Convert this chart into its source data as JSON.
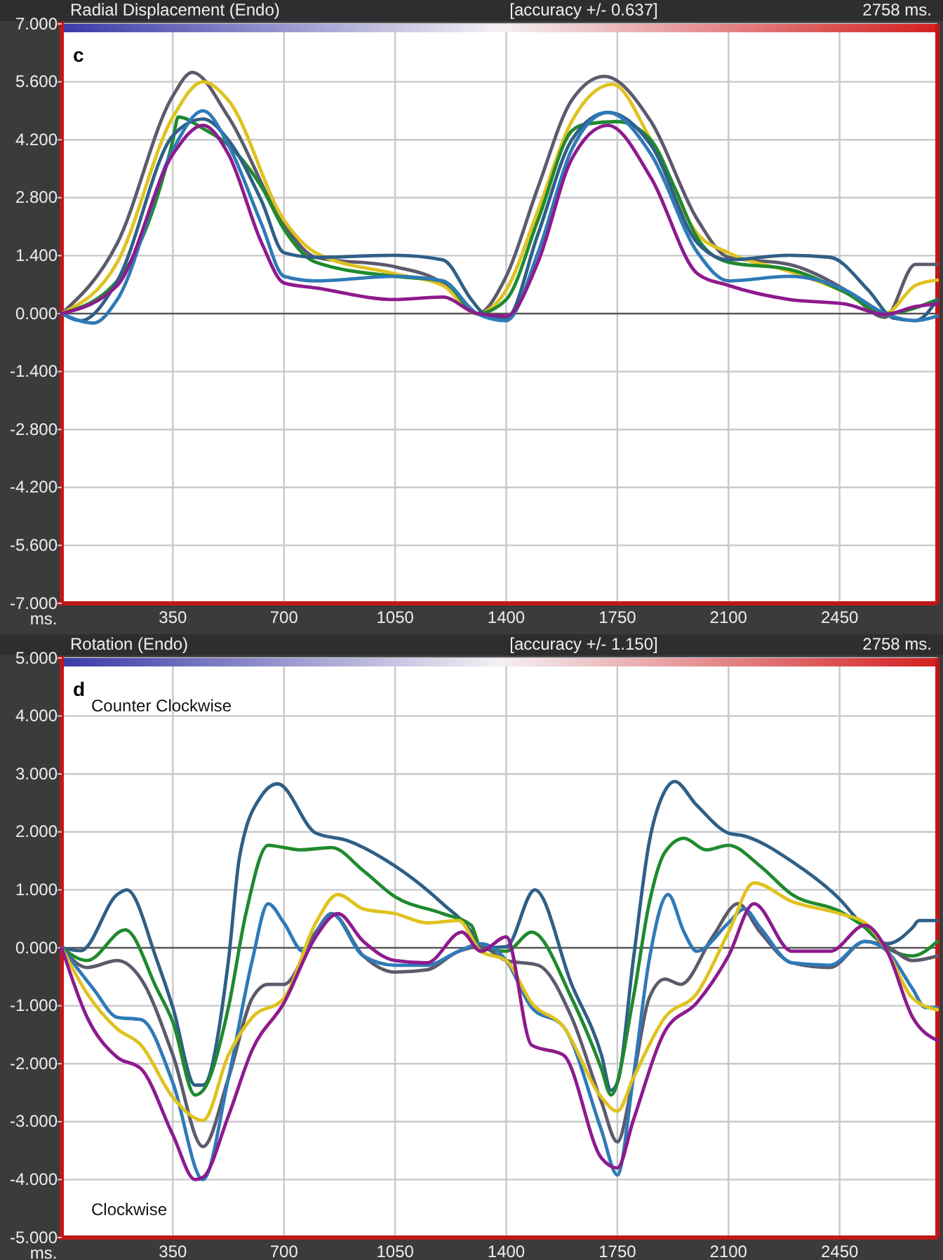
{
  "chart_data": [
    {
      "type": "line",
      "title": "Radial Displacement (Endo)",
      "subtitle": "[accuracy +/- 0.637]",
      "xlabel": "ms.",
      "annotations": [
        "2758 ms.",
        "c"
      ],
      "xlim": [
        0,
        2758
      ],
      "ylim": [
        -7,
        7
      ],
      "xticks": [
        350,
        700,
        1050,
        1400,
        1750,
        2100,
        2450
      ],
      "yticks": [
        {
          "value": 7,
          "label": "7.000"
        },
        {
          "value": 5.6,
          "label": "5.600"
        },
        {
          "value": 4.2,
          "label": "4.200"
        },
        {
          "value": 2.8,
          "label": "2.800"
        },
        {
          "value": 1.4,
          "label": "1.400"
        },
        {
          "value": 0,
          "label": "0.000"
        },
        {
          "value": -1.4,
          "label": "-1.400"
        },
        {
          "value": -2.8,
          "label": "-2.800"
        },
        {
          "value": -4.2,
          "label": "-4.200"
        },
        {
          "value": -5.6,
          "label": "-5.600"
        },
        {
          "value": -7,
          "label": "-7.000"
        }
      ],
      "grid": true,
      "series": [
        {
          "color": "#5c5a6c",
          "x": [
            0,
            175,
            350,
            411,
            525,
            700,
            800,
            1050,
            1200,
            1290,
            1309,
            1400,
            1500,
            1606,
            1709,
            1856,
            2003,
            2100,
            2291,
            2468,
            2593,
            2689,
            2758
          ],
          "values": [
            0,
            1.7,
            5.26,
            5.83,
            4.75,
            2.15,
            1.36,
            1.13,
            0.73,
            0.05,
            0,
            0.9,
            3.05,
            5.15,
            5.73,
            4.64,
            2.26,
            1.36,
            1.19,
            0.57,
            -0.09,
            1.19,
            1.19
          ]
        },
        {
          "color": "#e0c21e",
          "x": [
            0,
            175,
            350,
            445,
            525,
            700,
            800,
            1050,
            1200,
            1308,
            1400,
            1500,
            1606,
            1735,
            1856,
            2003,
            2100,
            2291,
            2468,
            2593,
            2689,
            2758
          ],
          "values": [
            0,
            1.24,
            4.75,
            5.6,
            5.15,
            2.26,
            1.47,
            0.96,
            0.68,
            0,
            0.57,
            2.49,
            4.64,
            5.54,
            4.19,
            1.92,
            1.47,
            1.02,
            0.51,
            0,
            0.68,
            0.81
          ]
        },
        {
          "color": "#1f8a2e",
          "x": [
            0,
            175,
            350,
            367,
            445,
            525,
            630,
            700,
            800,
            1050,
            1200,
            1308,
            1400,
            1500,
            1606,
            1650,
            1750,
            1856,
            1930,
            2003,
            2100,
            2291,
            2468,
            2593,
            2758
          ],
          "values": [
            0,
            0.79,
            4.19,
            4.75,
            4.47,
            4.07,
            3.05,
            2.04,
            1.24,
            0.9,
            0.79,
            0,
            0.34,
            2.26,
            4.41,
            4.58,
            4.64,
            4.19,
            3.05,
            1.81,
            1.24,
            1.07,
            0.51,
            0,
            0.34
          ]
        },
        {
          "color": "#2f5f86",
          "x": [
            0,
            60,
            175,
            350,
            445,
            525,
            630,
            700,
            800,
            1050,
            1200,
            1290,
            1330,
            1400,
            1500,
            1606,
            1720,
            1856,
            2003,
            2100,
            2291,
            2420,
            2540,
            2620,
            2689,
            2758
          ],
          "values": [
            0,
            -0.17,
            0.79,
            4.3,
            4.7,
            4.19,
            2.71,
            1.47,
            1.36,
            1.41,
            1.3,
            0.34,
            0,
            -0.11,
            1.92,
            4.19,
            4.86,
            4.07,
            1.7,
            1.3,
            1.41,
            1.36,
            0.57,
            -0.11,
            -0.17,
            0.34
          ]
        },
        {
          "color": "#2f7ab8",
          "x": [
            0,
            100,
            175,
            350,
            445,
            525,
            630,
            700,
            800,
            1050,
            1200,
            1308,
            1400,
            1500,
            1606,
            1720,
            1856,
            2003,
            2100,
            2291,
            2468,
            2593,
            2689,
            2758
          ],
          "values": [
            0,
            -0.23,
            0.34,
            3.96,
            4.9,
            4.07,
            2.15,
            0.9,
            0.79,
            0.9,
            0.79,
            0,
            -0.17,
            1.47,
            3.96,
            4.86,
            3.85,
            1.47,
            0.79,
            0.9,
            0.57,
            0,
            -0.17,
            -0.06
          ]
        },
        {
          "color": "#8e1a8e",
          "x": [
            0,
            175,
            350,
            445,
            525,
            630,
            700,
            800,
            1050,
            1200,
            1308,
            1400,
            1500,
            1606,
            1720,
            1856,
            2003,
            2100,
            2291,
            2468,
            2593,
            2689,
            2758
          ],
          "values": [
            0,
            0.68,
            3.85,
            4.55,
            3.85,
            1.7,
            0.74,
            0.62,
            0.34,
            0.4,
            0,
            -0.06,
            1.24,
            3.73,
            4.55,
            3.28,
            0.96,
            0.68,
            0.34,
            0.23,
            -0.02,
            0.17,
            0.23
          ]
        }
      ]
    },
    {
      "type": "line",
      "title": "Rotation (Endo)",
      "subtitle": "[accuracy +/- 1.150]",
      "xlabel": "ms.",
      "annotations": [
        "2758 ms.",
        "d",
        "Counter Clockwise",
        "Clockwise"
      ],
      "xlim": [
        0,
        2758
      ],
      "ylim": [
        -5,
        5
      ],
      "xticks": [
        350,
        700,
        1050,
        1400,
        1750,
        2100,
        2450
      ],
      "yticks": [
        {
          "value": 5,
          "label": "5.000"
        },
        {
          "value": 4,
          "label": "4.000"
        },
        {
          "value": 3,
          "label": "3.000"
        },
        {
          "value": 2,
          "label": "2.000"
        },
        {
          "value": 1,
          "label": "1.000"
        },
        {
          "value": 0,
          "label": "0.000"
        },
        {
          "value": -1,
          "label": "-1.000"
        },
        {
          "value": -2,
          "label": "-2.000"
        },
        {
          "value": -3,
          "label": "-3.000"
        },
        {
          "value": -4,
          "label": "-4.000"
        },
        {
          "value": -5,
          "label": "-5.000"
        }
      ],
      "grid": true,
      "series": [
        {
          "color": "#2f5f86",
          "x": [
            0,
            60,
            175,
            205,
            300,
            350,
            420,
            445,
            525,
            560,
            630,
            680,
            800,
            900,
            1050,
            1200,
            1290,
            1320,
            1400,
            1490,
            1606,
            1700,
            1730,
            1750,
            1800,
            1850,
            1900,
            1930,
            2000,
            2100,
            2150,
            2300,
            2450,
            2530,
            2600,
            2680,
            2700,
            2758
          ],
          "values": [
            0,
            -0.05,
            0.92,
            1.0,
            -0.22,
            -1.03,
            -2.37,
            -2.37,
            -0.22,
            1.57,
            2.63,
            2.83,
            1.98,
            1.85,
            1.41,
            0.76,
            0.27,
            0,
            0.02,
            1.0,
            -0.63,
            -1.85,
            -2.46,
            -2.33,
            -0.22,
            1.81,
            2.71,
            2.87,
            2.46,
            1.98,
            1.93,
            1.49,
            0.84,
            0.35,
            0.07,
            0.35,
            0.47,
            0.47
          ]
        },
        {
          "color": "#1f8a2e",
          "x": [
            0,
            80,
            200,
            300,
            350,
            420,
            445,
            525,
            580,
            650,
            700,
            750,
            850,
            950,
            1050,
            1200,
            1290,
            1320,
            1400,
            1480,
            1606,
            1700,
            1730,
            1800,
            1850,
            1900,
            1960,
            2030,
            2100,
            2200,
            2300,
            2450,
            2530,
            2600,
            2680,
            2758
          ],
          "values": [
            0,
            -0.22,
            0.31,
            -0.71,
            -1.28,
            -2.54,
            -2.46,
            -1.03,
            0.59,
            1.77,
            1.73,
            1.69,
            1.73,
            1.33,
            0.88,
            0.59,
            0.39,
            0,
            -0.06,
            0.27,
            -0.87,
            -2.09,
            -2.54,
            -0.87,
            0.76,
            1.65,
            1.89,
            1.69,
            1.77,
            1.41,
            0.92,
            0.63,
            0.35,
            0,
            -0.14,
            0.11
          ]
        },
        {
          "color": "#5c5a6c",
          "x": [
            0,
            80,
            175,
            250,
            350,
            445,
            525,
            600,
            650,
            700,
            800,
            850,
            950,
            1050,
            1150,
            1250,
            1320,
            1400,
            1500,
            1606,
            1700,
            1750,
            1800,
            1850,
            1900,
            1950,
            2050,
            2130,
            2200,
            2300,
            2420,
            2530,
            2600,
            2680,
            2758
          ],
          "values": [
            0,
            -0.34,
            -0.22,
            -0.54,
            -1.85,
            -3.43,
            -2.25,
            -0.87,
            -0.63,
            -0.63,
            0.27,
            0.59,
            -0.14,
            -0.42,
            -0.38,
            -0.06,
            0.02,
            -0.22,
            -0.3,
            -1.2,
            -2.66,
            -3.35,
            -2.25,
            -0.87,
            -0.54,
            -0.63,
            0.19,
            0.76,
            0.27,
            -0.26,
            -0.34,
            0.11,
            0.02,
            -0.22,
            -0.14
          ]
        },
        {
          "color": "#2f7ab8",
          "x": [
            0,
            100,
            175,
            250,
            350,
            445,
            525,
            600,
            650,
            700,
            760,
            850,
            950,
            1050,
            1150,
            1250,
            1320,
            1400,
            1480,
            1580,
            1700,
            1750,
            1800,
            1850,
            1910,
            1960,
            2000,
            2100,
            2150,
            2200,
            2300,
            2420,
            2530,
            2600,
            2680,
            2720,
            2758
          ],
          "values": [
            0,
            -0.71,
            -1.2,
            -1.24,
            -2.33,
            -4.0,
            -2.25,
            -0.22,
            0.76,
            0.43,
            -0.06,
            0.59,
            -0.14,
            -0.3,
            -0.3,
            -0.06,
            0.07,
            -0.22,
            -1.03,
            -1.36,
            -3.15,
            -3.92,
            -2.25,
            -0.22,
            0.92,
            0.27,
            -0.06,
            0.43,
            0.67,
            0.35,
            -0.26,
            -0.3,
            0.11,
            -0.06,
            -0.71,
            -1.03,
            -1.03
          ]
        },
        {
          "color": "#e0c21e",
          "x": [
            0,
            80,
            175,
            250,
            350,
            445,
            525,
            600,
            700,
            800,
            870,
            950,
            1050,
            1150,
            1250,
            1320,
            1400,
            1480,
            1580,
            1700,
            1750,
            1800,
            1900,
            2000,
            2100,
            2180,
            2300,
            2450,
            2530,
            2600,
            2680,
            2758
          ],
          "values": [
            0,
            -0.79,
            -1.4,
            -1.68,
            -2.58,
            -2.98,
            -1.85,
            -1.2,
            -0.87,
            0.43,
            0.92,
            0.67,
            0.59,
            0.43,
            0.47,
            -0.06,
            -0.22,
            -0.95,
            -1.36,
            -2.58,
            -2.82,
            -2.25,
            -1.2,
            -0.79,
            0.27,
            1.12,
            0.8,
            0.59,
            0.43,
            -0.06,
            -0.87,
            -1.07
          ]
        },
        {
          "color": "#8e1a8e",
          "x": [
            0,
            80,
            175,
            250,
            350,
            420,
            445,
            525,
            600,
            700,
            800,
            870,
            950,
            1050,
            1150,
            1260,
            1320,
            1400,
            1480,
            1580,
            1700,
            1750,
            1800,
            1900,
            2000,
            2100,
            2180,
            2300,
            2420,
            2530,
            2600,
            2680,
            2758
          ],
          "values": [
            0,
            -1.2,
            -1.89,
            -2.09,
            -3.23,
            -4.0,
            -3.96,
            -2.9,
            -1.76,
            -0.95,
            0.19,
            0.59,
            0.11,
            -0.22,
            -0.26,
            0.27,
            -0.06,
            0.19,
            -1.68,
            -1.85,
            -3.63,
            -3.8,
            -2.98,
            -1.44,
            -0.95,
            -0.14,
            0.76,
            -0.06,
            -0.06,
            0.39,
            -0.06,
            -1.2,
            -1.6
          ]
        }
      ]
    }
  ]
}
